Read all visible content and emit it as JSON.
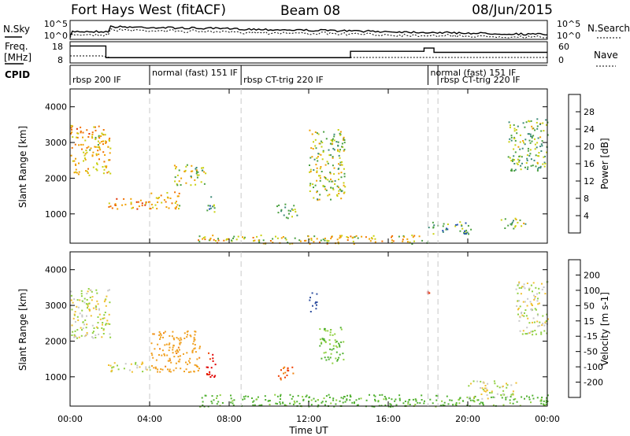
{
  "header": {
    "title": "Fort Hays West (fitACF)",
    "beam": "Beam 08",
    "date": "08/Jun/2015"
  },
  "top_labels": {
    "nsky": "N.Sky",
    "nsearch": "N.Search",
    "freq_line1": "Freq.",
    "freq_line2": "[MHz]",
    "nave": "Nave",
    "cpid": "CPID"
  },
  "noise_ticks": {
    "left": [
      "10^5",
      "10^0"
    ],
    "right": [
      "10^5",
      "10^0"
    ]
  },
  "freq_ticks": {
    "left": [
      "18",
      "8"
    ],
    "right": [
      "60",
      "0"
    ]
  },
  "cpid_segments": [
    {
      "label": "rbsp 200 IF",
      "start_h": 0.0
    },
    {
      "label": "normal (fast) 151 IF",
      "start_h": 4.0
    },
    {
      "label": "rbsp CT-trig 220 IF",
      "start_h": 8.6
    },
    {
      "label": "normal (fast) 151 IF",
      "start_h": 18.0
    },
    {
      "label": "rbsp CT-trig 220 IF",
      "start_h": 18.5
    }
  ],
  "power_colorbar": {
    "label": "Power [dB]",
    "ticks": [
      "4",
      "8",
      "12",
      "16",
      "20",
      "24",
      "28"
    ],
    "colors": [
      "#1030ff",
      "#2050b0",
      "#3d8a78",
      "#4aa040",
      "#c8d010",
      "#f0a000",
      "#f07000",
      "#e03000",
      "#e00000"
    ]
  },
  "velocity_colorbar": {
    "label": "Velocity [m s-1]",
    "ticks": [
      "200",
      "100",
      "50",
      "15",
      "-15",
      "-50",
      "-100",
      "-200"
    ],
    "colors": [
      "#1020c0",
      "#3050a0",
      "#2a7a50",
      "#50b030",
      "#90d040",
      "#c8c8c8",
      "#f0c030",
      "#f0a020",
      "#f08010",
      "#f04000",
      "#e00000"
    ]
  },
  "chart_data": {
    "type": "heatmap",
    "xlabel": "Time UT",
    "x_ticks": [
      "00:00",
      "04:00",
      "08:00",
      "12:00",
      "16:00",
      "20:00",
      "00:00"
    ],
    "xlim_hours": [
      0,
      24
    ],
    "ylabel": "Slant Range [km]",
    "y_ticks": [
      1000,
      2000,
      3000,
      4000
    ],
    "ylim_km": [
      180,
      4500
    ],
    "mode_change_lines_h": [
      4.0,
      8.6,
      18.0,
      18.5
    ],
    "freq_MHz": [
      [
        0,
        1.8,
        16
      ],
      [
        1.8,
        14.1,
        10.5
      ],
      [
        14.1,
        17.8,
        13.5
      ],
      [
        17.8,
        18.3,
        15
      ],
      [
        18.3,
        24,
        13
      ]
    ],
    "power_patches": [
      {
        "t": [
          0.0,
          2.0
        ],
        "r": [
          2100,
          3500
        ],
        "power_db": 18
      },
      {
        "t": [
          1.9,
          4.1
        ],
        "r": [
          1150,
          1450
        ],
        "power_db": 20
      },
      {
        "t": [
          4.0,
          5.5
        ],
        "r": [
          1150,
          1650
        ],
        "power_db": 18
      },
      {
        "t": [
          5.2,
          6.8
        ],
        "r": [
          1800,
          2400
        ],
        "power_db": 14
      },
      {
        "t": [
          6.8,
          7.3
        ],
        "r": [
          1000,
          1500
        ],
        "power_db": 10
      },
      {
        "t": [
          10.3,
          11.4
        ],
        "r": [
          900,
          1300
        ],
        "power_db": 11
      },
      {
        "t": [
          12.0,
          13.8
        ],
        "r": [
          1400,
          3400
        ],
        "power_db": 14
      },
      {
        "t": [
          18.0,
          20.2
        ],
        "r": [
          450,
          800
        ],
        "power_db": 10
      },
      {
        "t": [
          21.6,
          23.0
        ],
        "r": [
          600,
          900
        ],
        "power_db": 12
      },
      {
        "t": [
          22.0,
          24.0
        ],
        "r": [
          2200,
          3700
        ],
        "power_db": 12
      },
      {
        "t": [
          6.0,
          18.0
        ],
        "r": [
          180,
          420
        ],
        "power_db": 16
      }
    ],
    "velocity_patches": [
      {
        "t": [
          0.0,
          2.0
        ],
        "r": [
          2100,
          3500
        ],
        "velocity": 0
      },
      {
        "t": [
          1.9,
          4.1
        ],
        "r": [
          1150,
          1450
        ],
        "velocity": 0
      },
      {
        "t": [
          4.0,
          6.5
        ],
        "r": [
          1150,
          2300
        ],
        "velocity": -40
      },
      {
        "t": [
          6.8,
          7.3
        ],
        "r": [
          1000,
          1800
        ],
        "velocity": -200
      },
      {
        "t": [
          10.4,
          11.3
        ],
        "r": [
          900,
          1300
        ],
        "velocity": -110
      },
      {
        "t": [
          12.0,
          12.4
        ],
        "r": [
          2800,
          3400
        ],
        "velocity": 150
      },
      {
        "t": [
          12.5,
          13.8
        ],
        "r": [
          1400,
          2400
        ],
        "velocity": 20
      },
      {
        "t": [
          17.9,
          18.1
        ],
        "r": [
          3100,
          3400
        ],
        "velocity": -200
      },
      {
        "t": [
          20.0,
          22.4
        ],
        "r": [
          400,
          900
        ],
        "velocity": 0
      },
      {
        "t": [
          22.4,
          24.0
        ],
        "r": [
          2200,
          3700
        ],
        "velocity": 0
      },
      {
        "t": [
          6.5,
          24.0
        ],
        "r": [
          180,
          520
        ],
        "velocity": 30
      }
    ]
  }
}
